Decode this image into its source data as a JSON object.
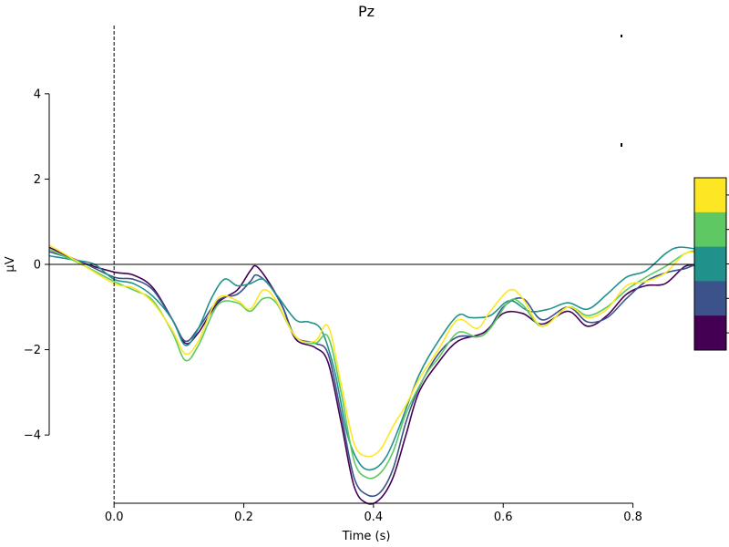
{
  "chart_data": {
    "type": "line",
    "title": "Pz",
    "xlabel": "Time (s)",
    "ylabel": "µV",
    "xlim": [
      -0.1,
      0.92
    ],
    "ylim": [
      -5.6,
      5.6
    ],
    "x_ticks": [
      0.0,
      0.2,
      0.4,
      0.6,
      0.8
    ],
    "x_tick_labels": [
      "0.0",
      "0.2",
      "0.4",
      "0.6",
      "0.8"
    ],
    "y_ticks": [
      -4,
      -2,
      0,
      2,
      4
    ],
    "y_tick_labels": [
      "−4",
      "−2",
      "0",
      "2",
      "4"
    ],
    "vline_x": 0.0,
    "hline_y": 0.0,
    "grid": false,
    "legend": "colorbar right (5 discrete levels, no printed labels)",
    "colorbar_colors": [
      "#fde725",
      "#5ec962",
      "#21918c",
      "#3b528b",
      "#440154"
    ],
    "series": [
      {
        "color": "#440154",
        "points": [
          [
            -0.1,
            0.4
          ],
          [
            -0.05,
            0.05
          ],
          [
            0.0,
            -0.18
          ],
          [
            0.03,
            -0.25
          ],
          [
            0.06,
            -0.55
          ],
          [
            0.09,
            -1.3
          ],
          [
            0.11,
            -1.85
          ],
          [
            0.13,
            -1.6
          ],
          [
            0.16,
            -0.9
          ],
          [
            0.19,
            -0.6
          ],
          [
            0.21,
            -0.15
          ],
          [
            0.22,
            -0.05
          ],
          [
            0.24,
            -0.45
          ],
          [
            0.26,
            -1.0
          ],
          [
            0.28,
            -1.75
          ],
          [
            0.31,
            -1.95
          ],
          [
            0.33,
            -2.3
          ],
          [
            0.35,
            -3.7
          ],
          [
            0.37,
            -5.2
          ],
          [
            0.39,
            -5.6
          ],
          [
            0.41,
            -5.5
          ],
          [
            0.43,
            -5.0
          ],
          [
            0.45,
            -4.0
          ],
          [
            0.47,
            -3.0
          ],
          [
            0.5,
            -2.3
          ],
          [
            0.53,
            -1.8
          ],
          [
            0.57,
            -1.6
          ],
          [
            0.6,
            -1.15
          ],
          [
            0.63,
            -1.15
          ],
          [
            0.66,
            -1.4
          ],
          [
            0.7,
            -1.1
          ],
          [
            0.73,
            -1.45
          ],
          [
            0.76,
            -1.2
          ],
          [
            0.79,
            -0.7
          ],
          [
            0.82,
            -0.5
          ],
          [
            0.85,
            -0.45
          ],
          [
            0.88,
            -0.05
          ],
          [
            0.9,
            -0.05
          ],
          [
            0.92,
            -0.25
          ]
        ]
      },
      {
        "color": "#3b528b",
        "points": [
          [
            -0.1,
            0.3
          ],
          [
            -0.05,
            0.05
          ],
          [
            0.0,
            -0.3
          ],
          [
            0.03,
            -0.35
          ],
          [
            0.06,
            -0.6
          ],
          [
            0.09,
            -1.3
          ],
          [
            0.11,
            -1.8
          ],
          [
            0.13,
            -1.5
          ],
          [
            0.16,
            -0.85
          ],
          [
            0.19,
            -0.7
          ],
          [
            0.21,
            -0.4
          ],
          [
            0.22,
            -0.25
          ],
          [
            0.24,
            -0.5
          ],
          [
            0.26,
            -1.0
          ],
          [
            0.28,
            -1.7
          ],
          [
            0.31,
            -1.85
          ],
          [
            0.33,
            -2.1
          ],
          [
            0.35,
            -3.5
          ],
          [
            0.37,
            -5.0
          ],
          [
            0.39,
            -5.4
          ],
          [
            0.41,
            -5.35
          ],
          [
            0.43,
            -4.8
          ],
          [
            0.45,
            -3.7
          ],
          [
            0.47,
            -2.9
          ],
          [
            0.5,
            -2.1
          ],
          [
            0.53,
            -1.7
          ],
          [
            0.57,
            -1.65
          ],
          [
            0.6,
            -1.0
          ],
          [
            0.63,
            -0.8
          ],
          [
            0.66,
            -1.3
          ],
          [
            0.7,
            -1.0
          ],
          [
            0.73,
            -1.35
          ],
          [
            0.76,
            -1.25
          ],
          [
            0.79,
            -0.8
          ],
          [
            0.82,
            -0.4
          ],
          [
            0.85,
            -0.2
          ],
          [
            0.88,
            -0.1
          ],
          [
            0.9,
            0.0
          ],
          [
            0.92,
            -0.1
          ]
        ]
      },
      {
        "color": "#21918c",
        "points": [
          [
            -0.1,
            0.2
          ],
          [
            -0.06,
            0.1
          ],
          [
            -0.03,
            0.0
          ],
          [
            0.0,
            -0.35
          ],
          [
            0.03,
            -0.45
          ],
          [
            0.06,
            -0.75
          ],
          [
            0.09,
            -1.3
          ],
          [
            0.11,
            -1.9
          ],
          [
            0.13,
            -1.5
          ],
          [
            0.15,
            -0.8
          ],
          [
            0.17,
            -0.35
          ],
          [
            0.19,
            -0.5
          ],
          [
            0.21,
            -0.45
          ],
          [
            0.23,
            -0.35
          ],
          [
            0.25,
            -0.7
          ],
          [
            0.28,
            -1.3
          ],
          [
            0.3,
            -1.35
          ],
          [
            0.32,
            -1.55
          ],
          [
            0.34,
            -2.5
          ],
          [
            0.36,
            -4.0
          ],
          [
            0.38,
            -4.7
          ],
          [
            0.4,
            -4.8
          ],
          [
            0.42,
            -4.5
          ],
          [
            0.44,
            -3.8
          ],
          [
            0.47,
            -2.6
          ],
          [
            0.5,
            -1.8
          ],
          [
            0.53,
            -1.2
          ],
          [
            0.55,
            -1.25
          ],
          [
            0.58,
            -1.2
          ],
          [
            0.61,
            -0.85
          ],
          [
            0.64,
            -1.1
          ],
          [
            0.67,
            -1.05
          ],
          [
            0.7,
            -0.9
          ],
          [
            0.73,
            -1.05
          ],
          [
            0.76,
            -0.7
          ],
          [
            0.79,
            -0.3
          ],
          [
            0.82,
            -0.15
          ],
          [
            0.85,
            0.25
          ],
          [
            0.87,
            0.4
          ],
          [
            0.9,
            0.35
          ],
          [
            0.92,
            0.25
          ]
        ]
      },
      {
        "color": "#5ec962",
        "points": [
          [
            -0.1,
            0.35
          ],
          [
            -0.05,
            0.0
          ],
          [
            0.0,
            -0.4
          ],
          [
            0.03,
            -0.6
          ],
          [
            0.06,
            -0.85
          ],
          [
            0.09,
            -1.6
          ],
          [
            0.11,
            -2.25
          ],
          [
            0.13,
            -1.9
          ],
          [
            0.16,
            -0.95
          ],
          [
            0.19,
            -0.9
          ],
          [
            0.21,
            -1.1
          ],
          [
            0.23,
            -0.8
          ],
          [
            0.25,
            -0.9
          ],
          [
            0.28,
            -1.7
          ],
          [
            0.31,
            -1.85
          ],
          [
            0.33,
            -1.7
          ],
          [
            0.35,
            -3.0
          ],
          [
            0.37,
            -4.6
          ],
          [
            0.39,
            -5.0
          ],
          [
            0.41,
            -4.9
          ],
          [
            0.43,
            -4.4
          ],
          [
            0.45,
            -3.5
          ],
          [
            0.48,
            -2.6
          ],
          [
            0.5,
            -2.2
          ],
          [
            0.53,
            -1.6
          ],
          [
            0.56,
            -1.7
          ],
          [
            0.58,
            -1.5
          ],
          [
            0.61,
            -0.85
          ],
          [
            0.63,
            -0.95
          ],
          [
            0.66,
            -1.45
          ],
          [
            0.7,
            -1.0
          ],
          [
            0.73,
            -1.2
          ],
          [
            0.76,
            -1.0
          ],
          [
            0.79,
            -0.6
          ],
          [
            0.82,
            -0.3
          ],
          [
            0.85,
            -0.05
          ],
          [
            0.88,
            0.25
          ],
          [
            0.9,
            0.3
          ],
          [
            0.92,
            0.1
          ]
        ]
      },
      {
        "color": "#fde725",
        "points": [
          [
            -0.1,
            0.45
          ],
          [
            -0.06,
            0.1
          ],
          [
            0.0,
            -0.45
          ],
          [
            0.03,
            -0.55
          ],
          [
            0.06,
            -0.9
          ],
          [
            0.09,
            -1.55
          ],
          [
            0.11,
            -2.1
          ],
          [
            0.13,
            -1.8
          ],
          [
            0.16,
            -0.8
          ],
          [
            0.19,
            -0.85
          ],
          [
            0.21,
            -1.05
          ],
          [
            0.23,
            -0.6
          ],
          [
            0.25,
            -0.85
          ],
          [
            0.28,
            -1.7
          ],
          [
            0.31,
            -1.8
          ],
          [
            0.33,
            -1.45
          ],
          [
            0.35,
            -2.8
          ],
          [
            0.37,
            -4.2
          ],
          [
            0.39,
            -4.5
          ],
          [
            0.41,
            -4.35
          ],
          [
            0.43,
            -3.8
          ],
          [
            0.45,
            -3.3
          ],
          [
            0.47,
            -2.7
          ],
          [
            0.5,
            -2.0
          ],
          [
            0.53,
            -1.3
          ],
          [
            0.56,
            -1.5
          ],
          [
            0.58,
            -1.1
          ],
          [
            0.61,
            -0.6
          ],
          [
            0.63,
            -0.8
          ],
          [
            0.66,
            -1.45
          ],
          [
            0.7,
            -1.0
          ],
          [
            0.73,
            -1.25
          ],
          [
            0.76,
            -1.05
          ],
          [
            0.79,
            -0.5
          ],
          [
            0.82,
            -0.4
          ],
          [
            0.85,
            -0.2
          ],
          [
            0.88,
            0.25
          ],
          [
            0.9,
            0.25
          ],
          [
            0.92,
            0.1
          ]
        ]
      }
    ]
  }
}
